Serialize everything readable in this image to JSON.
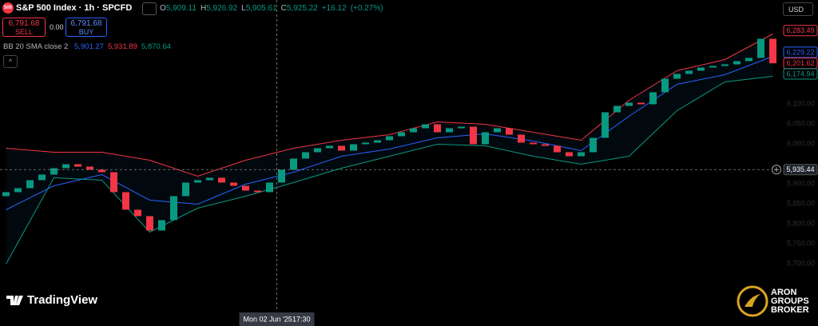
{
  "chart_data": {
    "type": "candlestick",
    "symbol_icon": "500",
    "title": "S&P 500 Index · 1h · SPCFD",
    "ohlc_letters": [
      "O",
      "H",
      "L",
      "C"
    ],
    "ohlc": [
      {
        "value": 5909.11,
        "label": "5,909.11"
      },
      {
        "value": 5926.92,
        "label": "5,926.92"
      },
      {
        "value": 5905.61,
        "label": "5,905.61"
      },
      {
        "value": 5925.22,
        "label": "5,925.22"
      }
    ],
    "change": {
      "value": 16.12,
      "label": "+16.12"
    },
    "change_pct": {
      "value": 0.27,
      "label": "(+0.27%)"
    },
    "sell": {
      "price": {
        "value": 6791.68,
        "label": "6,791.68"
      },
      "label": "SELL"
    },
    "spread": {
      "value": 0,
      "label": "0.00"
    },
    "buy": {
      "price": {
        "value": 6791.68,
        "label": "6,791.68"
      },
      "label": "BUY"
    },
    "indicator": "BB 20 SMA close 2",
    "currency": "USD",
    "up_color": "#089981",
    "down_color": "#f23645",
    "x": [
      0,
      1,
      2,
      3,
      4,
      5,
      6,
      7,
      8,
      9,
      10,
      11,
      12,
      13,
      14,
      15,
      16,
      17,
      18,
      19,
      20,
      21,
      22,
      23,
      24,
      25,
      26,
      27,
      28,
      29,
      30,
      31,
      32,
      33,
      34,
      35,
      36,
      37,
      38,
      39,
      40,
      41,
      42,
      43,
      44,
      45,
      46,
      47,
      48,
      49,
      50,
      51,
      52,
      53,
      54,
      55,
      56,
      57,
      58,
      59,
      60,
      61,
      62,
      63,
      64
    ],
    "open": [
      5869,
      5879,
      5889,
      5909,
      5923,
      5939,
      5949,
      5943,
      5935,
      5929,
      5879,
      5835,
      5819,
      5783,
      5809,
      5869,
      5903,
      5909,
      5915,
      5903,
      5895,
      5883,
      5879,
      5903,
      5935,
      5963,
      5979,
      5989,
      5995,
      5983,
      5999,
      6003,
      6009,
      6019,
      6029,
      6039,
      6049,
      6029,
      6039,
      6043,
      5999,
      6029,
      6039,
      6023,
      6003,
      5999,
      5995,
      5979,
      5969,
      5979,
      6015,
      6079,
      6095,
      6103,
      6099,
      6129,
      6163,
      6175,
      6183,
      6191,
      6195,
      6199,
      6207,
      6215,
      6263
    ],
    "close": [
      5879,
      5889,
      5909,
      5923,
      5939,
      5949,
      5943,
      5935,
      5929,
      5879,
      5835,
      5819,
      5783,
      5809,
      5869,
      5903,
      5909,
      5915,
      5903,
      5895,
      5883,
      5879,
      5903,
      5935,
      5963,
      5979,
      5989,
      5995,
      5983,
      5999,
      6003,
      6009,
      6019,
      6029,
      6039,
      6049,
      6029,
      6039,
      6043,
      5999,
      6029,
      6039,
      6023,
      6003,
      5999,
      5995,
      5979,
      5969,
      5979,
      6015,
      6079,
      6095,
      6103,
      6099,
      6129,
      6163,
      6175,
      6183,
      6191,
      6195,
      6199,
      6207,
      6215,
      6263,
      6201.62
    ],
    "last_price": {
      "value": 6201.62,
      "label": "6,201.62"
    },
    "band_x": [
      0,
      4,
      8,
      12,
      16,
      20,
      24,
      28,
      32,
      36,
      40,
      44,
      48,
      52,
      56,
      60,
      64
    ],
    "bands": [
      {
        "name": "upper",
        "color": "#f23645",
        "legend_value": {
          "value": 5931.89,
          "label": "5,931.89"
        },
        "last_label": {
          "value": 6283.49,
          "label": "6,283.49"
        },
        "values": [
          5989,
          5979,
          5979,
          5959,
          5919,
          5959,
          5989,
          6009,
          6023,
          6055,
          6049,
          6029,
          6009,
          6109,
          6183,
          6211,
          6275
        ]
      },
      {
        "name": "basis",
        "color": "#2962ff",
        "legend_value": {
          "value": 5901.27,
          "label": "5,901.27"
        },
        "last_label": {
          "value": 6229.22,
          "label": "6,229.22"
        },
        "values": [
          5835,
          5895,
          5923,
          5859,
          5849,
          5899,
          5929,
          5969,
          5987,
          6015,
          6025,
          6007,
          5983,
          6069,
          6149,
          6173,
          6219
        ]
      },
      {
        "name": "lower",
        "color": "#089981",
        "legend_value": {
          "value": 5870.64,
          "label": "5,870.64"
        },
        "last_label": {
          "value": 6174.94,
          "label": "6,174.94"
        },
        "values": [
          5699,
          5915,
          5909,
          5779,
          5839,
          5869,
          5903,
          5939,
          5969,
          5999,
          5995,
          5969,
          5949,
          5969,
          6083,
          6155,
          6169
        ]
      }
    ],
    "crosshair": {
      "x": 22.6,
      "price": {
        "value": 5935.44,
        "label": "5,935.44"
      },
      "date": "Mon 02 Jun '25",
      "time": "17:30"
    },
    "xlim": [
      -0.5,
      64.5
    ],
    "ylim": [
      5580,
      6360
    ],
    "yticks": [
      {
        "value": 5700,
        "label": "5,700.00"
      },
      {
        "value": 5750,
        "label": "5,750.00"
      },
      {
        "value": 5800,
        "label": "5,800.00"
      },
      {
        "value": 5850,
        "label": "5,850.00"
      },
      {
        "value": 5900,
        "label": "5,900.00"
      },
      {
        "value": 6000,
        "label": "6,000.00"
      },
      {
        "value": 6050,
        "label": "6,050.00"
      },
      {
        "value": 6100,
        "label": "6,100.00"
      }
    ],
    "grid": false,
    "watermark": "TradingView",
    "broker": [
      "ARON",
      "GROUPS",
      "BROKER"
    ]
  }
}
